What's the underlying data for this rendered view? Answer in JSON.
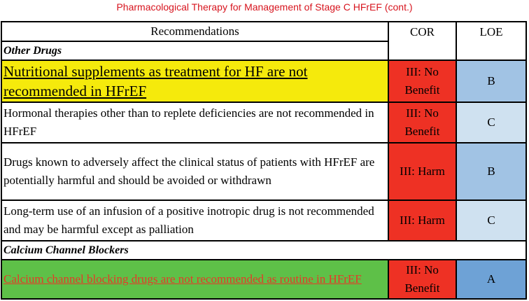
{
  "title": "Pharmacological Therapy for Management of Stage C HFrEF (cont.)",
  "colors": {
    "title_red": "#d7141e",
    "cor_red": "#ee3124",
    "highlight_yellow": "#f5ea0c",
    "highlight_green": "#5ec048",
    "loe_b": "#a1c3e4",
    "loe_c": "#cfe1f0",
    "loe_a": "#6ea2d6"
  },
  "header": {
    "recommendations": "Recommendations",
    "cor": "COR",
    "loe": "LOE"
  },
  "sections": [
    {
      "name": "Other Drugs",
      "rows": [
        {
          "text": "Nutritional supplements as treatment for HF are not recommended in HFrEF",
          "cor": "III: No Benefit",
          "loe": "B",
          "loe_color": "#a1c3e4",
          "highlight": "yellow"
        },
        {
          "text": "Hormonal therapies other than to replete deficiencies are not recommended in HFrEF",
          "cor": "III: No Benefit",
          "loe": "C",
          "loe_color": "#cfe1f0",
          "highlight": ""
        },
        {
          "text": "Drugs known to adversely affect the clinical status of patients with HFrEF are potentially harmful and should be avoided or withdrawn",
          "cor": "III: Harm",
          "loe": "B",
          "loe_color": "#a1c3e4",
          "highlight": ""
        },
        {
          "text": "Long-term use of an infusion of a positive inotropic drug is not recommended and may be harmful except as palliation",
          "cor": "III: Harm",
          "loe": "C",
          "loe_color": "#cfe1f0",
          "highlight": ""
        }
      ]
    },
    {
      "name": "Calcium Channel Blockers",
      "rows": [
        {
          "text": "Calcium channel blocking drugs are not recommended as routine in HFrEF",
          "cor": "III: No Benefit",
          "loe": "A",
          "loe_color": "#6ea2d6",
          "highlight": "green"
        }
      ]
    }
  ]
}
